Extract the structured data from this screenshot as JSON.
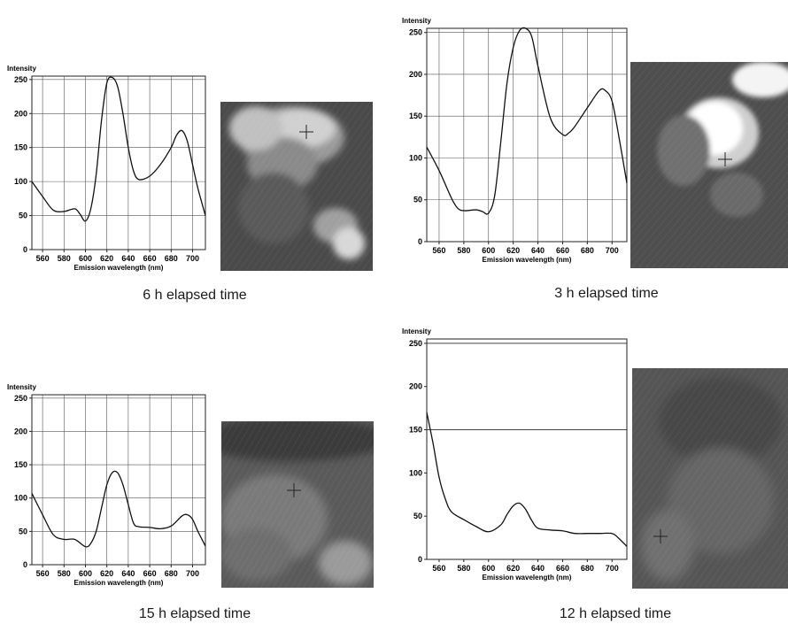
{
  "panels": [
    {
      "caption": "6 h elapsed time"
    },
    {
      "caption": "3 h elapsed time"
    },
    {
      "caption": "15 h elapsed time"
    },
    {
      "caption": "12 h elapsed time"
    }
  ],
  "chart_data": [
    {
      "type": "line",
      "title": "",
      "ylabel": "Intensity",
      "xlabel": "Emission wavelength (nm)",
      "xlim": [
        550,
        712
      ],
      "ylim": [
        0,
        255
      ],
      "xticks": [
        560,
        580,
        600,
        620,
        640,
        660,
        680,
        700
      ],
      "yticks": [
        0,
        50,
        100,
        150,
        200,
        250
      ],
      "grid": true,
      "x": [
        550,
        560,
        570,
        580,
        590,
        595,
        600,
        605,
        610,
        615,
        620,
        625,
        630,
        635,
        640,
        645,
        650,
        660,
        670,
        680,
        685,
        690,
        695,
        700,
        705,
        712
      ],
      "y": [
        100,
        78,
        58,
        56,
        60,
        52,
        42,
        60,
        110,
        190,
        245,
        253,
        240,
        200,
        150,
        115,
        103,
        108,
        125,
        150,
        168,
        175,
        160,
        125,
        90,
        50
      ]
    },
    {
      "type": "line",
      "title": "",
      "ylabel": "Intensity",
      "xlabel": "Emission wavelength (nm)",
      "xlim": [
        550,
        712
      ],
      "ylim": [
        0,
        255
      ],
      "xticks": [
        560,
        580,
        600,
        620,
        640,
        660,
        680,
        700
      ],
      "yticks": [
        0,
        50,
        100,
        150,
        200,
        250
      ],
      "grid": true,
      "x": [
        550,
        560,
        570,
        575,
        580,
        590,
        595,
        600,
        605,
        610,
        615,
        620,
        625,
        630,
        635,
        640,
        650,
        660,
        665,
        670,
        680,
        690,
        695,
        700,
        705,
        712
      ],
      "y": [
        113,
        85,
        52,
        40,
        37,
        38,
        36,
        34,
        55,
        120,
        190,
        232,
        252,
        255,
        245,
        210,
        148,
        128,
        130,
        138,
        160,
        181,
        180,
        168,
        130,
        70
      ]
    },
    {
      "type": "line",
      "title": "",
      "ylabel": "Intensity",
      "xlabel": "Emission wavelength (nm)",
      "xlim": [
        550,
        712
      ],
      "ylim": [
        0,
        255
      ],
      "xticks": [
        560,
        580,
        600,
        620,
        640,
        660,
        680,
        700
      ],
      "yticks": [
        0,
        50,
        100,
        150,
        200,
        250
      ],
      "grid": true,
      "x": [
        550,
        560,
        570,
        580,
        590,
        600,
        605,
        610,
        615,
        620,
        625,
        630,
        635,
        640,
        645,
        650,
        660,
        670,
        680,
        690,
        695,
        700,
        705,
        712
      ],
      "y": [
        107,
        75,
        45,
        38,
        38,
        27,
        32,
        50,
        85,
        120,
        138,
        138,
        120,
        90,
        62,
        57,
        56,
        54,
        58,
        73,
        75,
        68,
        50,
        28
      ]
    },
    {
      "type": "line",
      "title": "",
      "ylabel": "Intensity",
      "xlabel": "Emission wavelength (nm)",
      "xlim": [
        550,
        712
      ],
      "ylim": [
        0,
        255
      ],
      "xticks": [
        560,
        580,
        600,
        620,
        640,
        660,
        680,
        700
      ],
      "yticks": [
        0,
        50,
        100,
        150,
        200,
        250
      ],
      "grid": "partial",
      "x": [
        550,
        555,
        560,
        565,
        570,
        580,
        590,
        600,
        610,
        615,
        620,
        625,
        630,
        635,
        640,
        650,
        660,
        670,
        680,
        690,
        700,
        705,
        712
      ],
      "y": [
        170,
        135,
        95,
        70,
        55,
        46,
        38,
        32,
        40,
        52,
        62,
        65,
        58,
        45,
        36,
        34,
        33,
        30,
        30,
        30,
        30,
        25,
        15
      ]
    }
  ]
}
